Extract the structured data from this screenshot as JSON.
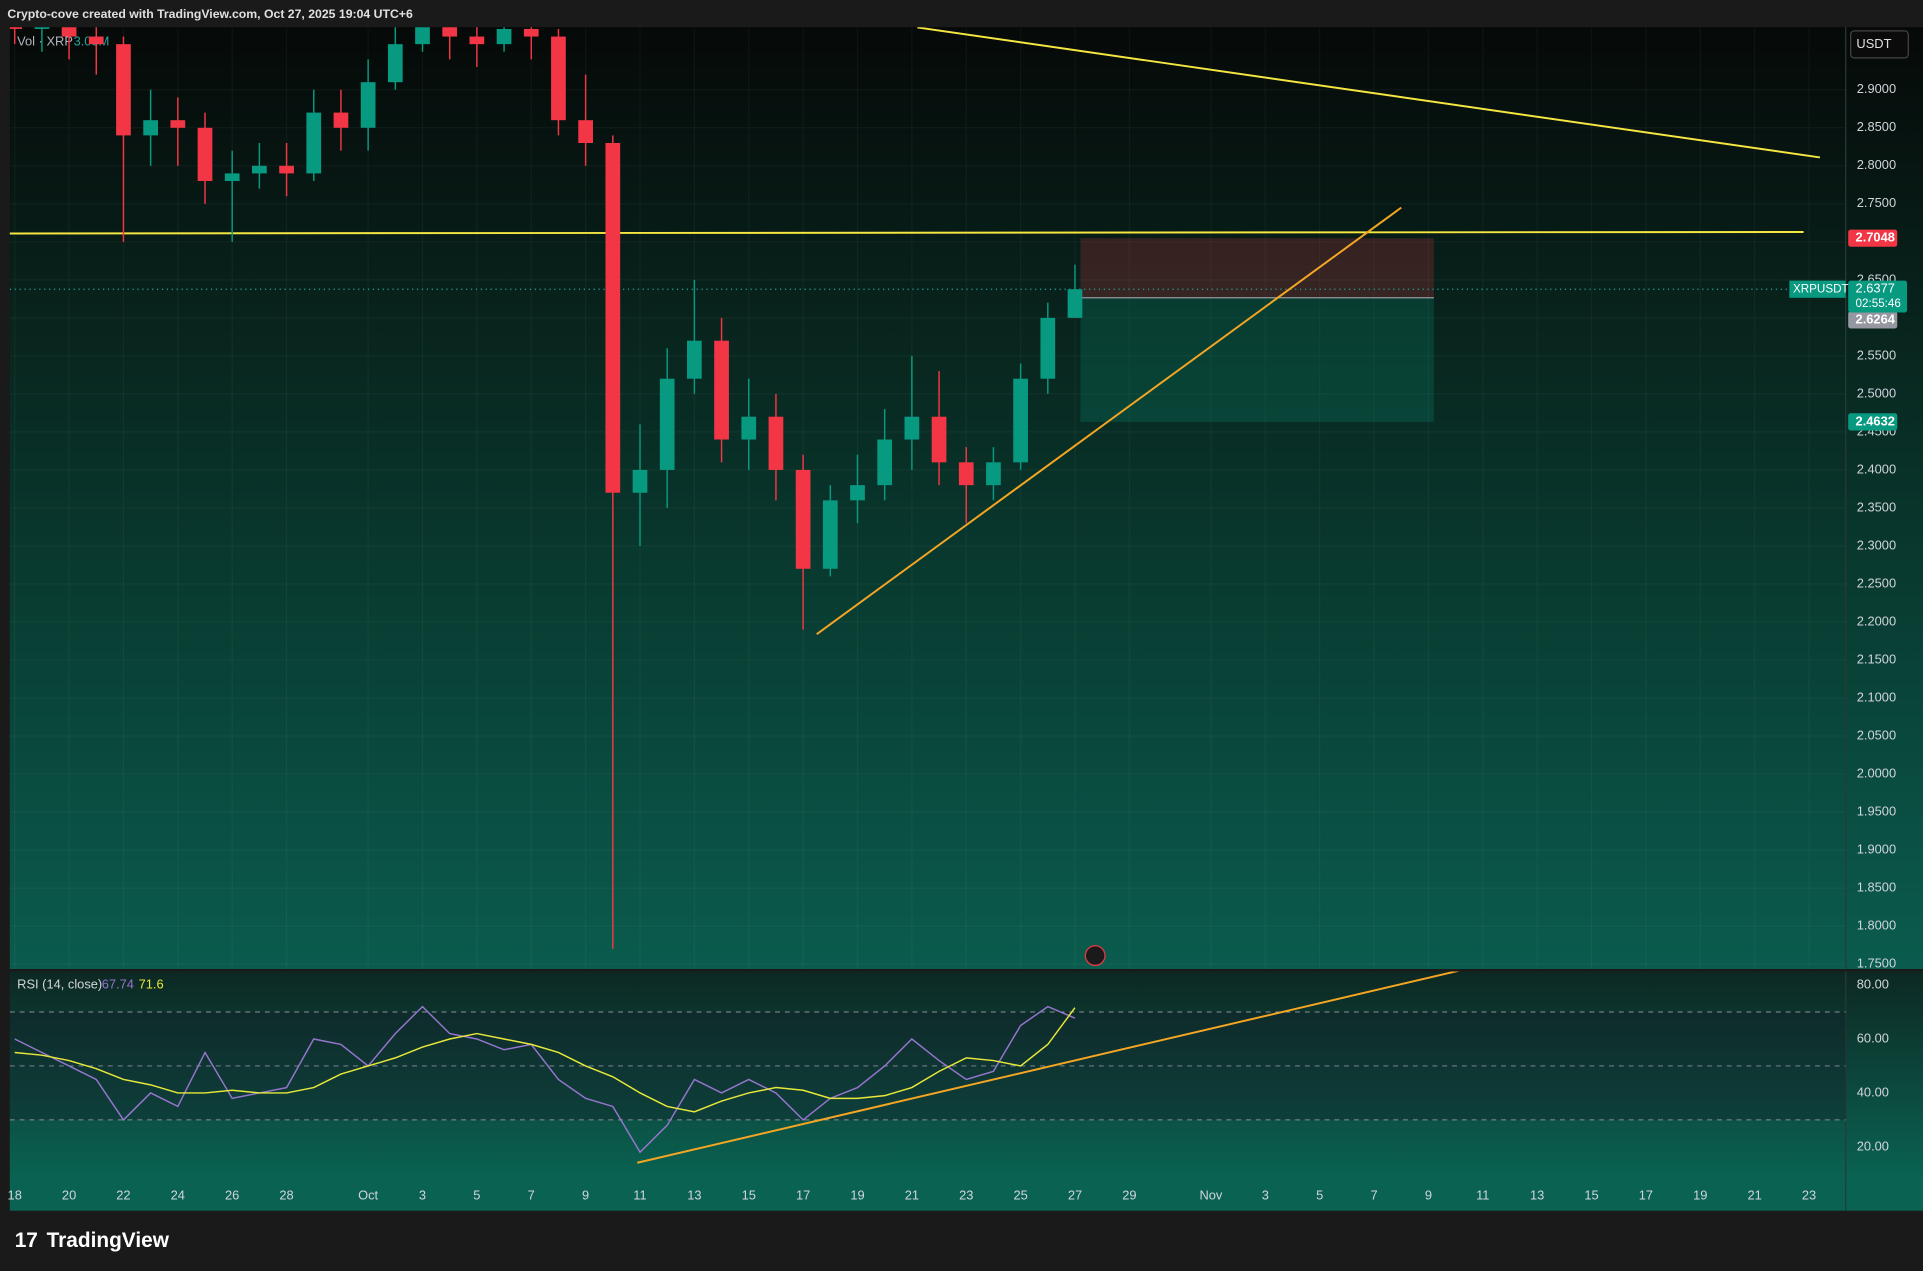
{
  "header": {
    "title": "Crypto-cove created with TradingView.com, Oct 27, 2025 19:04 UTC+6",
    "brand": "TradingView"
  },
  "chart_data": {
    "type": "candlestick",
    "symbol": "XRPUSDT",
    "currency": "USDT",
    "volume_label": "Vol · XRP",
    "volume_value": "3.03M",
    "x": [
      0,
      1,
      2,
      3,
      4,
      5,
      6,
      7,
      8,
      9,
      10,
      11,
      12,
      13,
      14,
      15,
      16,
      17,
      18,
      19,
      20,
      21,
      22,
      23,
      24,
      25,
      26,
      27,
      28,
      29,
      30,
      31,
      32,
      33,
      34,
      35,
      36,
      37,
      38,
      39
    ],
    "open": [
      3.0,
      2.98,
      2.99,
      2.97,
      2.96,
      2.84,
      2.86,
      2.85,
      2.78,
      2.79,
      2.8,
      2.79,
      2.87,
      2.85,
      2.91,
      2.96,
      2.99,
      2.97,
      2.96,
      2.98,
      2.97,
      2.86,
      2.83,
      2.37,
      2.4,
      2.52,
      2.57,
      2.44,
      2.47,
      2.4,
      2.27,
      2.36,
      2.38,
      2.44,
      2.47,
      2.41,
      2.38,
      2.41,
      2.52,
      2.6
    ],
    "high": [
      3.04,
      3.03,
      3.01,
      3.0,
      2.97,
      2.9,
      2.89,
      2.87,
      2.82,
      2.83,
      2.83,
      2.9,
      2.9,
      2.94,
      3.0,
      3.05,
      3.03,
      3.02,
      3.03,
      3.02,
      2.98,
      2.92,
      2.84,
      2.46,
      2.56,
      2.65,
      2.6,
      2.52,
      2.5,
      2.42,
      2.38,
      2.42,
      2.48,
      2.55,
      2.53,
      2.43,
      2.43,
      2.54,
      2.62,
      2.67
    ],
    "low": [
      2.96,
      2.95,
      2.94,
      2.92,
      2.7,
      2.8,
      2.8,
      2.75,
      2.7,
      2.77,
      2.76,
      2.78,
      2.82,
      2.82,
      2.9,
      2.95,
      2.94,
      2.93,
      2.95,
      2.94,
      2.84,
      2.8,
      1.77,
      2.3,
      2.35,
      2.5,
      2.41,
      2.4,
      2.36,
      2.19,
      2.26,
      2.33,
      2.36,
      2.4,
      2.38,
      2.33,
      2.36,
      2.4,
      2.5,
      2.6
    ],
    "close": [
      2.98,
      2.99,
      2.97,
      2.96,
      2.84,
      2.86,
      2.85,
      2.78,
      2.79,
      2.8,
      2.79,
      2.87,
      2.85,
      2.91,
      2.96,
      2.99,
      2.97,
      2.96,
      2.98,
      2.97,
      2.86,
      2.83,
      2.37,
      2.4,
      2.52,
      2.57,
      2.44,
      2.47,
      2.4,
      2.27,
      2.36,
      2.38,
      2.44,
      2.47,
      2.41,
      2.38,
      2.41,
      2.52,
      2.6,
      2.6377
    ],
    "up_color": "#089981",
    "down_color": "#f23645",
    "xlim": [
      -0.18,
      67.35
    ],
    "xticks": [
      {
        "value": 0,
        "label": "18"
      },
      {
        "value": 2,
        "label": "20"
      },
      {
        "value": 4,
        "label": "22"
      },
      {
        "value": 6,
        "label": "24"
      },
      {
        "value": 8,
        "label": "26"
      },
      {
        "value": 10,
        "label": "28"
      },
      {
        "value": 13,
        "label": "Oct"
      },
      {
        "value": 15,
        "label": "3"
      },
      {
        "value": 17,
        "label": "5"
      },
      {
        "value": 19,
        "label": "7"
      },
      {
        "value": 21,
        "label": "9"
      },
      {
        "value": 23,
        "label": "11"
      },
      {
        "value": 25,
        "label": "13"
      },
      {
        "value": 27,
        "label": "15"
      },
      {
        "value": 29,
        "label": "17"
      },
      {
        "value": 31,
        "label": "19"
      },
      {
        "value": 33,
        "label": "21"
      },
      {
        "value": 35,
        "label": "23"
      },
      {
        "value": 37,
        "label": "25"
      },
      {
        "value": 39,
        "label": "27"
      },
      {
        "value": 41,
        "label": "29"
      },
      {
        "value": 44,
        "label": "Nov"
      },
      {
        "value": 46,
        "label": "3"
      },
      {
        "value": 48,
        "label": "5"
      },
      {
        "value": 50,
        "label": "7"
      },
      {
        "value": 52,
        "label": "9"
      },
      {
        "value": 54,
        "label": "11"
      },
      {
        "value": 56,
        "label": "13"
      },
      {
        "value": 58,
        "label": "15"
      },
      {
        "value": 60,
        "label": "17"
      },
      {
        "value": 62,
        "label": "19"
      },
      {
        "value": 64,
        "label": "21"
      },
      {
        "value": 66,
        "label": "23"
      }
    ],
    "ylim": [
      1.7435,
      2.9823
    ],
    "yticks": [
      {
        "value": 1.75,
        "label": "1.7500"
      },
      {
        "value": 1.8,
        "label": "1.8000"
      },
      {
        "value": 1.85,
        "label": "1.8500"
      },
      {
        "value": 1.9,
        "label": "1.9000"
      },
      {
        "value": 1.95,
        "label": "1.9500"
      },
      {
        "value": 2,
        "label": "2.0000"
      },
      {
        "value": 2.05,
        "label": "2.0500"
      },
      {
        "value": 2.1,
        "label": "2.1000"
      },
      {
        "value": 2.15,
        "label": "2.1500"
      },
      {
        "value": 2.2,
        "label": "2.2000"
      },
      {
        "value": 2.25,
        "label": "2.2500"
      },
      {
        "value": 2.3,
        "label": "2.3000"
      },
      {
        "value": 2.35,
        "label": "2.3500"
      },
      {
        "value": 2.4,
        "label": "2.4000"
      },
      {
        "value": 2.45,
        "label": "2.4500"
      },
      {
        "value": 2.5,
        "label": "2.5000"
      },
      {
        "value": 2.55,
        "label": "2.5500"
      },
      {
        "value": 2.6,
        "label": "2.6000"
      },
      {
        "value": 2.65,
        "label": "2.6500"
      },
      {
        "value": 2.7,
        "label": "2.7000"
      },
      {
        "value": 2.75,
        "label": "2.7500"
      },
      {
        "value": 2.8,
        "label": "2.8000"
      },
      {
        "value": 2.85,
        "label": "2.8500"
      },
      {
        "value": 2.9,
        "label": "2.9000"
      }
    ],
    "last_price": 2.6377,
    "countdown": "02:55:46",
    "position": {
      "stop": 2.7048,
      "entry": 2.6264,
      "target": 2.4632,
      "x_start": 39.2,
      "x_end": 52.2
    },
    "trend_lines": [
      {
        "color": "#f5e642",
        "points": [
          [
            33.2,
            2.982
          ],
          [
            66.4,
            2.811
          ]
        ]
      },
      {
        "color": "#f5e642",
        "points": [
          [
            -0.2,
            2.711
          ],
          [
            65.8,
            2.713
          ]
        ]
      },
      {
        "color": "#f5a623",
        "points": [
          [
            29.5,
            2.184
          ],
          [
            51.0,
            2.745
          ]
        ]
      }
    ],
    "rsi": {
      "title": "RSI (14, close)",
      "color": "#9575cd",
      "ma_color": "#e8e83a",
      "values": [
        60,
        55,
        50,
        45,
        30,
        40,
        35,
        55,
        38,
        40,
        42,
        60,
        58,
        50,
        62,
        72,
        62,
        60,
        56,
        58,
        45,
        38,
        35,
        18,
        28,
        45,
        40,
        45,
        40,
        30,
        38,
        42,
        50,
        60,
        52,
        45,
        48,
        65,
        72,
        67.74
      ],
      "ma_values": [
        55,
        54,
        52,
        49,
        45,
        43,
        40,
        40,
        41,
        40,
        40,
        42,
        47,
        50,
        53,
        57,
        60,
        62,
        60,
        58,
        55,
        50,
        46,
        40,
        35,
        33,
        37,
        40,
        42,
        41,
        38,
        38,
        39,
        42,
        48,
        53,
        52,
        50,
        58,
        71.6
      ],
      "ylim": [
        7.7,
        85
      ],
      "yticks": [
        {
          "value": 20,
          "label": "20.00"
        },
        {
          "value": 40,
          "label": "40.00"
        },
        {
          "value": 60,
          "label": "60.00"
        },
        {
          "value": 80,
          "label": "80.00"
        }
      ],
      "bands": [
        30,
        50,
        70
      ],
      "trend_line": {
        "color": "#f5a623",
        "points": [
          [
            22.9,
            14.1
          ],
          [
            53.2,
            85.5
          ]
        ]
      }
    }
  }
}
